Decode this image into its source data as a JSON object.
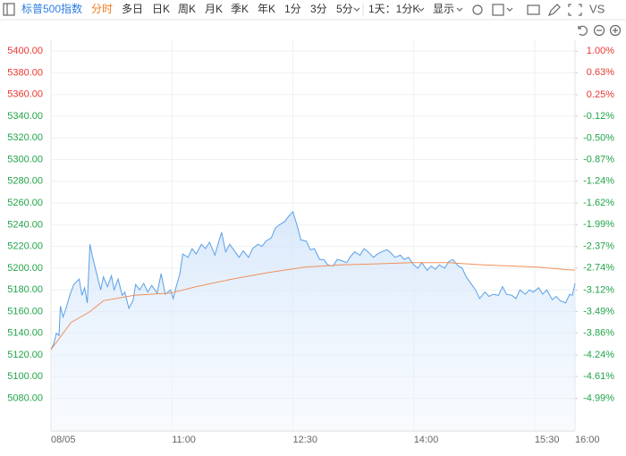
{
  "toolbar": {
    "title": "标普500指数",
    "tabs": [
      "分时",
      "多日",
      "日K",
      "周K",
      "月K",
      "季K",
      "年K",
      "1分",
      "3分",
      "5分"
    ],
    "interval": "1天：1分K",
    "display": "显示",
    "compare": "VS"
  },
  "chart_data": {
    "type": "line",
    "grid": true,
    "area": true,
    "up_color": "#e8372f",
    "down_color": "#22a34a",
    "xlim": [
      0,
      390
    ],
    "xticks": [
      {
        "value": 0,
        "label": "08/05"
      },
      {
        "value": 90,
        "label": "11:00"
      },
      {
        "value": 180,
        "label": "12:30"
      },
      {
        "value": 270,
        "label": "14:00"
      },
      {
        "value": 360,
        "label": "15:30"
      },
      {
        "value": 390,
        "label": "16:00"
      }
    ],
    "ylim": [
      5050,
      5410
    ],
    "yticks": [
      {
        "value": 5400,
        "label": "5400.00"
      },
      {
        "value": 5380,
        "label": "5380.00"
      },
      {
        "value": 5360,
        "label": "5360.00"
      },
      {
        "value": 5340,
        "label": "5340.00"
      },
      {
        "value": 5320,
        "label": "5320.00"
      },
      {
        "value": 5300,
        "label": "5300.00"
      },
      {
        "value": 5280,
        "label": "5280.00"
      },
      {
        "value": 5260,
        "label": "5260.00"
      },
      {
        "value": 5240,
        "label": "5240.00"
      },
      {
        "value": 5220,
        "label": "5220.00"
      },
      {
        "value": 5200,
        "label": "5200.00"
      },
      {
        "value": 5180,
        "label": "5180.00"
      },
      {
        "value": 5160,
        "label": "5160.00"
      },
      {
        "value": 5140,
        "label": "5140.00"
      },
      {
        "value": 5120,
        "label": "5120.00"
      },
      {
        "value": 5100,
        "label": "5100.00"
      },
      {
        "value": 5080,
        "label": "5080.00"
      }
    ],
    "y2lim": [
      -5.55,
      1.19
    ],
    "y2ticks": [
      {
        "value": 1.0,
        "label": "1.00%"
      },
      {
        "value": 0.63,
        "label": "0.63%"
      },
      {
        "value": 0.25,
        "label": "0.25%"
      },
      {
        "value": -0.12,
        "label": "-0.12%"
      },
      {
        "value": -0.5,
        "label": "-0.50%"
      },
      {
        "value": -0.87,
        "label": "-0.87%"
      },
      {
        "value": -1.24,
        "label": "-1.24%"
      },
      {
        "value": -1.62,
        "label": "-1.62%"
      },
      {
        "value": -1.99,
        "label": "-1.99%"
      },
      {
        "value": -2.37,
        "label": "-2.37%"
      },
      {
        "value": -2.74,
        "label": "-2.74%"
      },
      {
        "value": -3.12,
        "label": "-3.12%"
      },
      {
        "value": -3.49,
        "label": "-3.49%"
      },
      {
        "value": -3.86,
        "label": "-3.86%"
      },
      {
        "value": -4.24,
        "label": "-4.24%"
      },
      {
        "value": -4.61,
        "label": "-4.61%"
      },
      {
        "value": -4.99,
        "label": "-4.99%"
      }
    ],
    "series": [
      {
        "color": "#5aa0e6",
        "x": [
          0,
          2,
          4,
          6,
          7,
          9,
          11,
          14,
          17,
          21,
          23,
          25,
          27,
          29,
          31,
          34,
          37,
          39,
          42,
          45,
          47,
          50,
          53,
          55,
          58,
          61,
          63,
          66,
          69,
          72,
          75,
          79,
          82,
          85,
          89,
          91,
          93,
          96,
          98,
          102,
          105,
          108,
          112,
          115,
          118,
          122,
          125,
          127,
          130,
          133,
          136,
          140,
          143,
          147,
          150,
          154,
          157,
          160,
          164,
          167,
          170,
          174,
          177,
          180,
          183,
          186,
          190,
          193,
          196,
          200,
          203,
          206,
          210,
          213,
          216,
          220,
          223,
          226,
          230,
          233,
          236,
          240,
          243,
          246,
          250,
          253,
          256,
          260,
          263,
          266,
          270,
          273,
          276,
          280,
          283,
          286,
          289,
          293,
          296,
          299,
          303,
          306,
          309,
          313,
          316,
          319,
          323,
          326,
          329,
          333,
          336,
          339,
          343,
          346,
          349,
          353,
          356,
          359,
          363,
          366,
          369,
          373,
          376,
          379,
          383,
          386,
          388,
          390
        ],
        "values": [
          5125,
          5130,
          5140,
          5138,
          5165,
          5155,
          5162,
          5175,
          5185,
          5190,
          5175,
          5182,
          5168,
          5222,
          5210,
          5195,
          5180,
          5192,
          5183,
          5193,
          5180,
          5190,
          5175,
          5178,
          5163,
          5170,
          5185,
          5180,
          5186,
          5178,
          5184,
          5177,
          5195,
          5176,
          5180,
          5172,
          5182,
          5195,
          5213,
          5210,
          5218,
          5213,
          5222,
          5218,
          5224,
          5212,
          5225,
          5233,
          5215,
          5222,
          5217,
          5210,
          5216,
          5210,
          5218,
          5222,
          5220,
          5225,
          5228,
          5237,
          5240,
          5243,
          5248,
          5252,
          5240,
          5226,
          5225,
          5217,
          5218,
          5208,
          5208,
          5203,
          5202,
          5208,
          5207,
          5205,
          5211,
          5215,
          5212,
          5218,
          5215,
          5210,
          5213,
          5215,
          5217,
          5214,
          5210,
          5212,
          5208,
          5210,
          5203,
          5200,
          5205,
          5198,
          5202,
          5199,
          5203,
          5200,
          5206,
          5208,
          5202,
          5200,
          5192,
          5185,
          5180,
          5172,
          5178,
          5174,
          5176,
          5175,
          5183,
          5176,
          5175,
          5172,
          5180,
          5176,
          5180,
          5178,
          5182,
          5176,
          5180,
          5171,
          5174,
          5170,
          5168,
          5176,
          5175,
          5186
        ]
      },
      {
        "color": "#f0915a",
        "x": [
          0,
          15,
          29,
          39,
          62,
          89,
          108,
          135,
          162,
          189,
          216,
          242,
          269,
          296,
          322,
          362,
          390
        ],
        "values": [
          5125,
          5150,
          5160,
          5170,
          5175,
          5177,
          5183,
          5190,
          5196,
          5201,
          5203,
          5204,
          5205,
          5205,
          5203,
          5201,
          5198
        ]
      }
    ]
  }
}
